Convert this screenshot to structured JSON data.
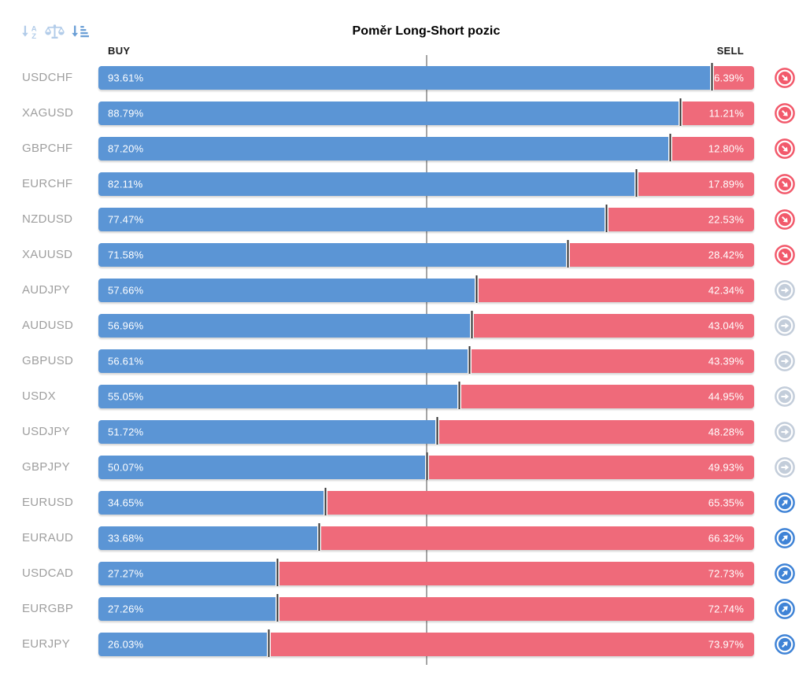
{
  "header": {
    "title": "Poměr Long-Short pozic",
    "buy_label": "BUY",
    "sell_label": "SELL"
  },
  "toolbar": {
    "icons": [
      {
        "name": "sort-alphabetical-icon",
        "active": false
      },
      {
        "name": "balance-scale-icon",
        "active": false
      },
      {
        "name": "sort-by-value-icon",
        "active": true
      }
    ]
  },
  "colors": {
    "buy_bar": "#5b95d5",
    "sell_bar": "#ef6a7a",
    "trend_down_icon": "#f2596b",
    "trend_neutral_icon": "#c3cdda",
    "trend_up_icon": "#3f83d6",
    "center_line": "#a5a5a5",
    "pair_label": "#9e9e9e",
    "toolbar_icon_inactive": "#b2cce9",
    "toolbar_icon_active": "#6b9fd6",
    "divider": "#303030"
  },
  "rows": [
    {
      "pair": "USDCHF",
      "buy": 93.61,
      "sell": 6.39,
      "buy_label": "93.61%",
      "sell_label": "6.39%",
      "trend": "down"
    },
    {
      "pair": "XAGUSD",
      "buy": 88.79,
      "sell": 11.21,
      "buy_label": "88.79%",
      "sell_label": "11.21%",
      "trend": "down"
    },
    {
      "pair": "GBPCHF",
      "buy": 87.2,
      "sell": 12.8,
      "buy_label": "87.20%",
      "sell_label": "12.80%",
      "trend": "down"
    },
    {
      "pair": "EURCHF",
      "buy": 82.11,
      "sell": 17.89,
      "buy_label": "82.11%",
      "sell_label": "17.89%",
      "trend": "down"
    },
    {
      "pair": "NZDUSD",
      "buy": 77.47,
      "sell": 22.53,
      "buy_label": "77.47%",
      "sell_label": "22.53%",
      "trend": "down"
    },
    {
      "pair": "XAUUSD",
      "buy": 71.58,
      "sell": 28.42,
      "buy_label": "71.58%",
      "sell_label": "28.42%",
      "trend": "down"
    },
    {
      "pair": "AUDJPY",
      "buy": 57.66,
      "sell": 42.34,
      "buy_label": "57.66%",
      "sell_label": "42.34%",
      "trend": "neutral"
    },
    {
      "pair": "AUDUSD",
      "buy": 56.96,
      "sell": 43.04,
      "buy_label": "56.96%",
      "sell_label": "43.04%",
      "trend": "neutral"
    },
    {
      "pair": "GBPUSD",
      "buy": 56.61,
      "sell": 43.39,
      "buy_label": "56.61%",
      "sell_label": "43.39%",
      "trend": "neutral"
    },
    {
      "pair": "USDX",
      "buy": 55.05,
      "sell": 44.95,
      "buy_label": "55.05%",
      "sell_label": "44.95%",
      "trend": "neutral"
    },
    {
      "pair": "USDJPY",
      "buy": 51.72,
      "sell": 48.28,
      "buy_label": "51.72%",
      "sell_label": "48.28%",
      "trend": "neutral"
    },
    {
      "pair": "GBPJPY",
      "buy": 50.07,
      "sell": 49.93,
      "buy_label": "50.07%",
      "sell_label": "49.93%",
      "trend": "neutral"
    },
    {
      "pair": "EURUSD",
      "buy": 34.65,
      "sell": 65.35,
      "buy_label": "34.65%",
      "sell_label": "65.35%",
      "trend": "up"
    },
    {
      "pair": "EURAUD",
      "buy": 33.68,
      "sell": 66.32,
      "buy_label": "33.68%",
      "sell_label": "66.32%",
      "trend": "up"
    },
    {
      "pair": "USDCAD",
      "buy": 27.27,
      "sell": 72.73,
      "buy_label": "27.27%",
      "sell_label": "72.73%",
      "trend": "up"
    },
    {
      "pair": "EURGBP",
      "buy": 27.26,
      "sell": 72.74,
      "buy_label": "27.26%",
      "sell_label": "72.74%",
      "trend": "up"
    },
    {
      "pair": "EURJPY",
      "buy": 26.03,
      "sell": 73.97,
      "buy_label": "26.03%",
      "sell_label": "73.97%",
      "trend": "up"
    }
  ],
  "chart_data": {
    "type": "bar",
    "orientation": "horizontal",
    "stacked": true,
    "title": "Poměr Long-Short pozic",
    "categories": [
      "USDCHF",
      "XAGUSD",
      "GBPCHF",
      "EURCHF",
      "NZDUSD",
      "XAUUSD",
      "AUDJPY",
      "AUDUSD",
      "GBPUSD",
      "USDX",
      "USDJPY",
      "GBPJPY",
      "EURUSD",
      "EURAUD",
      "USDCAD",
      "EURGBP",
      "EURJPY"
    ],
    "series": [
      {
        "name": "BUY",
        "color": "#5b95d5",
        "values": [
          93.61,
          88.79,
          87.2,
          82.11,
          77.47,
          71.58,
          57.66,
          56.96,
          56.61,
          55.05,
          51.72,
          50.07,
          34.65,
          33.68,
          27.27,
          27.26,
          26.03
        ]
      },
      {
        "name": "SELL",
        "color": "#ef6a7a",
        "values": [
          6.39,
          11.21,
          12.8,
          17.89,
          22.53,
          28.42,
          42.34,
          43.04,
          43.39,
          44.95,
          48.28,
          49.93,
          65.35,
          66.32,
          72.73,
          72.74,
          73.97
        ]
      }
    ],
    "value_format": "percent",
    "xlim": [
      0,
      100
    ],
    "center_line": 50,
    "sorted": "by BUY descending",
    "trend_indicators": [
      "down",
      "down",
      "down",
      "down",
      "down",
      "down",
      "neutral",
      "neutral",
      "neutral",
      "neutral",
      "neutral",
      "neutral",
      "up",
      "up",
      "up",
      "up",
      "up"
    ]
  }
}
